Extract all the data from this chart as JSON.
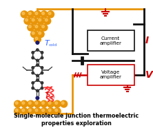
{
  "title_line1": "Single-molecule junction thermoelectric",
  "title_line2": "properties exploration",
  "title_fontsize": 5.8,
  "title_fontweight": "bold",
  "current_amplifier_label": "Current\namplifier",
  "voltage_amplifier_label": "Voltage\namplifier",
  "I_label": "I",
  "V_label": "V",
  "gold_color": "#E8950A",
  "gold_highlight": "#FFD070",
  "gold_shadow": "#B06A00",
  "molecule_color": "#333333",
  "wire_yellow": "#E8950A",
  "wire_black": "#111111",
  "wire_red": "#CC0000",
  "tcold_color": "#3366FF",
  "thot_color": "#CC0000",
  "heat_arrow_color": "#FF3333",
  "bg_color": "#FFFFFF",
  "fig_w": 2.22,
  "fig_h": 1.89,
  "dpi": 100
}
